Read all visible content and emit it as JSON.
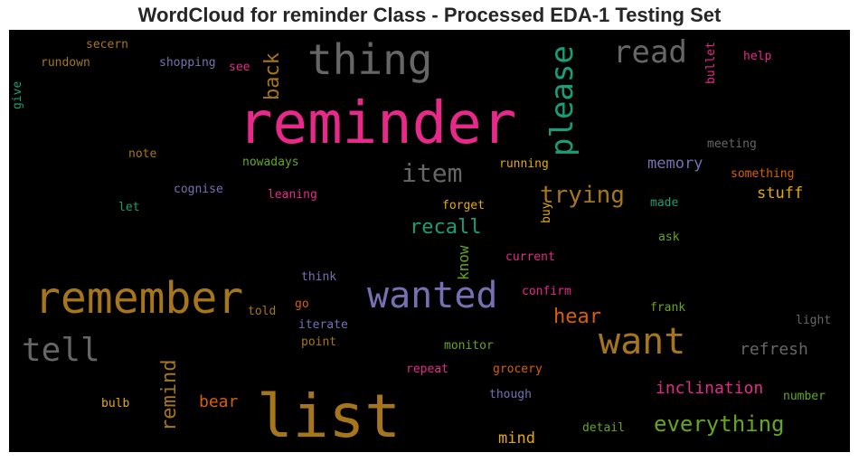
{
  "title": "WordCloud for reminder Class - Processed EDA-1 Testing Set",
  "palette": {
    "pink": "#e7298a",
    "ochre": "#a6761d",
    "teal": "#1b9e77",
    "purple": "#7570b3",
    "orange": "#d95f02",
    "green": "#66a61e",
    "gold": "#e6ab02",
    "gray": "#666666"
  },
  "words": {
    "reminder": "reminder",
    "list": "list",
    "remember": "remember",
    "thing": "thing",
    "wanted": "wanted",
    "want": "want",
    "please": "please",
    "tell": "tell",
    "read": "read",
    "item": "item",
    "trying": "trying",
    "everything": "everything",
    "recall": "recall",
    "remind": "remind",
    "back": "back",
    "hear": "hear",
    "inclination": "inclination",
    "refresh": "refresh",
    "memory": "memory",
    "stuff": "stuff",
    "bear": "bear",
    "mind": "mind",
    "know": "know",
    "secern": "secern",
    "rundown": "rundown",
    "shopping": "shopping",
    "see": "see",
    "give": "give",
    "help": "help",
    "bullet": "bullet",
    "meeting": "meeting",
    "note": "note",
    "nowadays": "nowadays",
    "running": "running",
    "something": "something",
    "cognise": "cognise",
    "leaning": "leaning",
    "let": "let",
    "forget": "forget",
    "buy": "buy",
    "made": "made",
    "ask": "ask",
    "current": "current",
    "think": "think",
    "confirm": "confirm",
    "go": "go",
    "told": "told",
    "frank": "frank",
    "iterate": "iterate",
    "point": "point",
    "light": "light",
    "monitor": "monitor",
    "repeat": "repeat",
    "grocery": "grocery",
    "number": "number",
    "though": "though",
    "bulb": "bulb",
    "detail": "detail"
  }
}
